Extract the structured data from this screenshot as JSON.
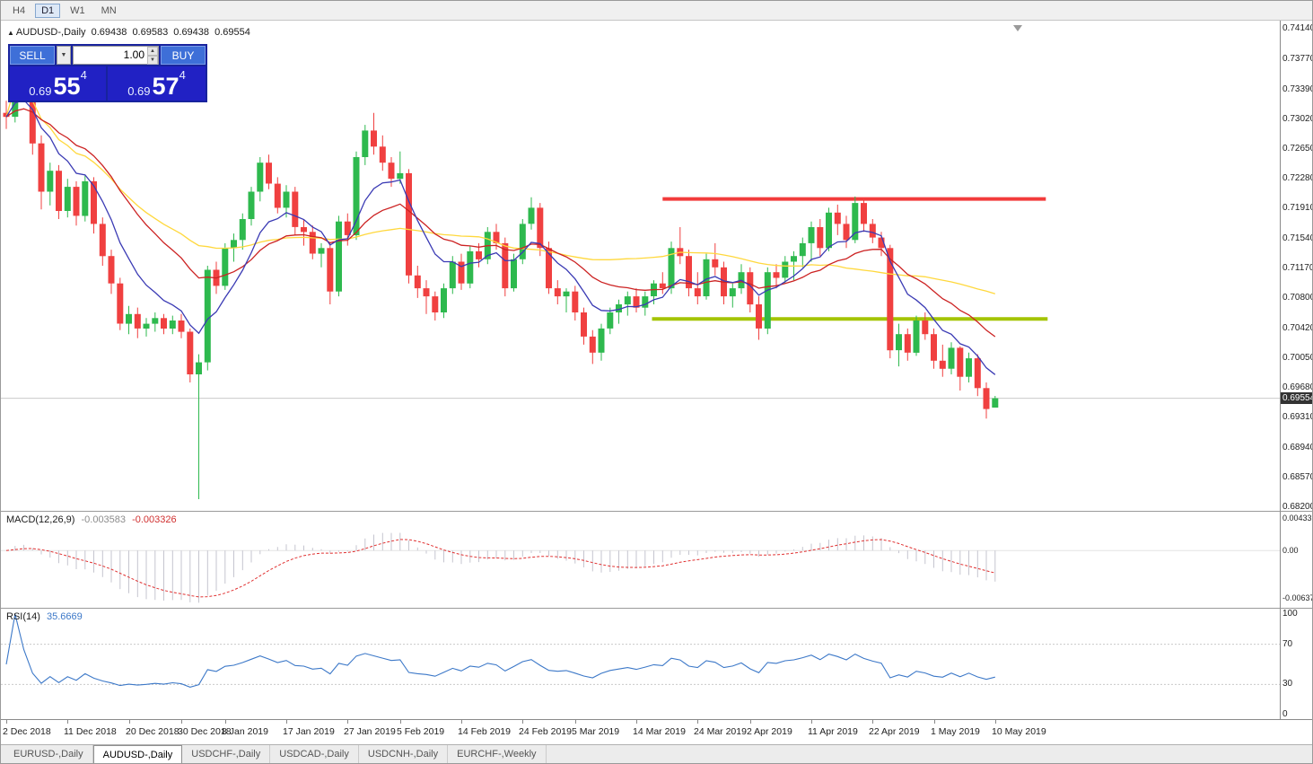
{
  "window": {
    "timeframes": [
      {
        "label": "H4",
        "active": false
      },
      {
        "label": "D1",
        "active": true
      },
      {
        "label": "W1",
        "active": false
      },
      {
        "label": "MN",
        "active": false
      }
    ],
    "tabs": [
      {
        "label": "EURUSD-,Daily",
        "active": false
      },
      {
        "label": "AUDUSD-,Daily",
        "active": true
      },
      {
        "label": "USDCHF-,Daily",
        "active": false
      },
      {
        "label": "USDCAD-,Daily",
        "active": false
      },
      {
        "label": "USDCNH-,Daily",
        "active": false
      },
      {
        "label": "EURCHF-,Weekly",
        "active": false
      }
    ]
  },
  "info_line": {
    "symbol": "AUDUSD-,Daily",
    "open": "0.69438",
    "high": "0.69583",
    "low": "0.69438",
    "close": "0.69554"
  },
  "trade_panel": {
    "sell_label": "SELL",
    "buy_label": "BUY",
    "volume": "1.00",
    "sell_price": {
      "prefix": "0.69",
      "big": "55",
      "sup": "4"
    },
    "buy_price": {
      "prefix": "0.69",
      "big": "57",
      "sup": "4"
    }
  },
  "chart_data": {
    "type": "candlestick",
    "title": "AUDUSD-,Daily",
    "current_price": 0.69554,
    "current_price_label": "0.69554",
    "colors": {
      "up": "#2eb94e",
      "down": "#f04040"
    },
    "price_axis_ticks": [
      "0.74140",
      "0.73770",
      "0.73390",
      "0.73020",
      "0.72650",
      "0.72280",
      "0.71910",
      "0.71540",
      "0.71170",
      "0.70800",
      "0.70420",
      "0.70050",
      "0.69680",
      "0.69310",
      "0.68940",
      "0.68570",
      "0.68200"
    ],
    "x_labels": [
      {
        "t": "2 Dec 2018",
        "i": 0
      },
      {
        "t": "11 Dec 2018",
        "i": 7
      },
      {
        "t": "20 Dec 2018",
        "i": 14
      },
      {
        "t": "30 Dec 2018",
        "i": 20
      },
      {
        "t": "8 Jan 2019",
        "i": 25
      },
      {
        "t": "17 Jan 2019",
        "i": 32
      },
      {
        "t": "27 Jan 2019",
        "i": 39
      },
      {
        "t": "5 Feb 2019",
        "i": 45
      },
      {
        "t": "14 Feb 2019",
        "i": 52
      },
      {
        "t": "24 Feb 2019",
        "i": 59
      },
      {
        "t": "5 Mar 2019",
        "i": 65
      },
      {
        "t": "14 Mar 2019",
        "i": 72
      },
      {
        "t": "24 Mar 2019",
        "i": 79
      },
      {
        "t": "2 Apr 2019",
        "i": 85
      },
      {
        "t": "11 Apr 2019",
        "i": 92
      },
      {
        "t": "22 Apr 2019",
        "i": 99
      },
      {
        "t": "1 May 2019",
        "i": 106
      },
      {
        "t": "10 May 2019",
        "i": 113
      }
    ],
    "candles": [
      [
        0.731,
        0.7325,
        0.729,
        0.7305
      ],
      [
        0.7305,
        0.7394,
        0.7298,
        0.7382
      ],
      [
        0.7382,
        0.739,
        0.733,
        0.734
      ],
      [
        0.734,
        0.7352,
        0.7258,
        0.7272
      ],
      [
        0.7272,
        0.7282,
        0.719,
        0.7212
      ],
      [
        0.7212,
        0.7248,
        0.7195,
        0.7238
      ],
      [
        0.7238,
        0.7245,
        0.7178,
        0.7188
      ],
      [
        0.7188,
        0.7228,
        0.718,
        0.7218
      ],
      [
        0.7218,
        0.7225,
        0.717,
        0.7182
      ],
      [
        0.7182,
        0.7232,
        0.7175,
        0.7225
      ],
      [
        0.7225,
        0.723,
        0.716,
        0.7172
      ],
      [
        0.7172,
        0.718,
        0.712,
        0.7132
      ],
      [
        0.7132,
        0.714,
        0.7085,
        0.7098
      ],
      [
        0.7098,
        0.7105,
        0.704,
        0.7048
      ],
      [
        0.7048,
        0.707,
        0.7035,
        0.706
      ],
      [
        0.706,
        0.7068,
        0.703,
        0.7042
      ],
      [
        0.7042,
        0.7055,
        0.7032,
        0.7048
      ],
      [
        0.7048,
        0.7062,
        0.7038,
        0.7055
      ],
      [
        0.7055,
        0.706,
        0.7035,
        0.7042
      ],
      [
        0.7042,
        0.7058,
        0.7035,
        0.7052
      ],
      [
        0.7052,
        0.706,
        0.703,
        0.7038
      ],
      [
        0.7038,
        0.7042,
        0.6975,
        0.6985
      ],
      [
        0.6985,
        0.701,
        0.683,
        0.7
      ],
      [
        0.7,
        0.712,
        0.699,
        0.7115
      ],
      [
        0.7115,
        0.7125,
        0.7085,
        0.7095
      ],
      [
        0.7095,
        0.7148,
        0.709,
        0.7142
      ],
      [
        0.7142,
        0.716,
        0.7125,
        0.7152
      ],
      [
        0.7152,
        0.7185,
        0.714,
        0.7178
      ],
      [
        0.7178,
        0.7218,
        0.717,
        0.7212
      ],
      [
        0.7212,
        0.7255,
        0.72,
        0.7248
      ],
      [
        0.7248,
        0.7258,
        0.7215,
        0.7222
      ],
      [
        0.7222,
        0.723,
        0.7185,
        0.7192
      ],
      [
        0.7192,
        0.722,
        0.718,
        0.7212
      ],
      [
        0.7212,
        0.7218,
        0.7158,
        0.7168
      ],
      [
        0.7168,
        0.7178,
        0.7145,
        0.7162
      ],
      [
        0.7162,
        0.717,
        0.7128,
        0.7135
      ],
      [
        0.7135,
        0.7148,
        0.7118,
        0.7142
      ],
      [
        0.7142,
        0.7148,
        0.7072,
        0.7088
      ],
      [
        0.7088,
        0.7182,
        0.7082,
        0.7175
      ],
      [
        0.7175,
        0.7185,
        0.7145,
        0.7158
      ],
      [
        0.7158,
        0.7262,
        0.7152,
        0.7255
      ],
      [
        0.7255,
        0.7295,
        0.7245,
        0.7288
      ],
      [
        0.7288,
        0.731,
        0.7258,
        0.7268
      ],
      [
        0.7268,
        0.7282,
        0.7238,
        0.7248
      ],
      [
        0.7248,
        0.7255,
        0.7218,
        0.7228
      ],
      [
        0.7228,
        0.7262,
        0.7222,
        0.7235
      ],
      [
        0.7235,
        0.724,
        0.7098,
        0.7108
      ],
      [
        0.7108,
        0.712,
        0.708,
        0.7092
      ],
      [
        0.7092,
        0.7102,
        0.706,
        0.7082
      ],
      [
        0.7082,
        0.7088,
        0.7052,
        0.7062
      ],
      [
        0.7062,
        0.7098,
        0.7055,
        0.7092
      ],
      [
        0.7092,
        0.7132,
        0.7085,
        0.7125
      ],
      [
        0.7125,
        0.7135,
        0.709,
        0.7098
      ],
      [
        0.7098,
        0.7145,
        0.7092,
        0.7138
      ],
      [
        0.7138,
        0.7148,
        0.7118,
        0.7128
      ],
      [
        0.7128,
        0.7168,
        0.7122,
        0.7162
      ],
      [
        0.7162,
        0.7172,
        0.714,
        0.7148
      ],
      [
        0.7148,
        0.7155,
        0.7082,
        0.7092
      ],
      [
        0.7092,
        0.7135,
        0.7088,
        0.7128
      ],
      [
        0.7128,
        0.7178,
        0.7122,
        0.7172
      ],
      [
        0.7172,
        0.7205,
        0.7165,
        0.7192
      ],
      [
        0.7192,
        0.7198,
        0.7132,
        0.7142
      ],
      [
        0.7142,
        0.715,
        0.7085,
        0.7092
      ],
      [
        0.7092,
        0.7102,
        0.7072,
        0.7082
      ],
      [
        0.7082,
        0.7092,
        0.7062,
        0.7088
      ],
      [
        0.7088,
        0.7095,
        0.7052,
        0.7062
      ],
      [
        0.7062,
        0.7068,
        0.7022,
        0.7032
      ],
      [
        0.7032,
        0.704,
        0.6998,
        0.7012
      ],
      [
        0.7012,
        0.7048,
        0.7002,
        0.7042
      ],
      [
        0.7042,
        0.7068,
        0.7035,
        0.7062
      ],
      [
        0.7062,
        0.7078,
        0.7048,
        0.7072
      ],
      [
        0.7072,
        0.7088,
        0.7058,
        0.7082
      ],
      [
        0.7082,
        0.7092,
        0.7062,
        0.7068
      ],
      [
        0.7068,
        0.7088,
        0.7058,
        0.7082
      ],
      [
        0.7082,
        0.7102,
        0.7072,
        0.7098
      ],
      [
        0.7098,
        0.7112,
        0.7085,
        0.7092
      ],
      [
        0.7092,
        0.715,
        0.7085,
        0.7142
      ],
      [
        0.7142,
        0.7168,
        0.7122,
        0.7132
      ],
      [
        0.7132,
        0.714,
        0.7082,
        0.7092
      ],
      [
        0.7092,
        0.7112,
        0.7072,
        0.7082
      ],
      [
        0.7082,
        0.7135,
        0.7078,
        0.7128
      ],
      [
        0.7128,
        0.7148,
        0.7108,
        0.7118
      ],
      [
        0.7118,
        0.7125,
        0.7072,
        0.7082
      ],
      [
        0.7082,
        0.7098,
        0.7068,
        0.7092
      ],
      [
        0.7092,
        0.7122,
        0.7085,
        0.7112
      ],
      [
        0.7112,
        0.7118,
        0.7062,
        0.7072
      ],
      [
        0.7072,
        0.7082,
        0.7028,
        0.7042
      ],
      [
        0.7042,
        0.7118,
        0.7035,
        0.7112
      ],
      [
        0.7112,
        0.7122,
        0.7092,
        0.7105
      ],
      [
        0.7105,
        0.7132,
        0.7098,
        0.7125
      ],
      [
        0.7125,
        0.7138,
        0.7102,
        0.7132
      ],
      [
        0.7132,
        0.7155,
        0.7118,
        0.7148
      ],
      [
        0.7148,
        0.7175,
        0.7125,
        0.7168
      ],
      [
        0.7168,
        0.7178,
        0.7132,
        0.7142
      ],
      [
        0.7142,
        0.7192,
        0.7138,
        0.7186
      ],
      [
        0.7186,
        0.7196,
        0.7158,
        0.7172
      ],
      [
        0.7172,
        0.7182,
        0.7142,
        0.7152
      ],
      [
        0.7152,
        0.7206,
        0.7148,
        0.7198
      ],
      [
        0.7198,
        0.7204,
        0.7162,
        0.7172
      ],
      [
        0.7172,
        0.7178,
        0.7148,
        0.7155
      ],
      [
        0.7155,
        0.7162,
        0.7132,
        0.7142
      ],
      [
        0.7142,
        0.7146,
        0.7005,
        0.7015
      ],
      [
        0.7015,
        0.7048,
        0.6995,
        0.7035
      ],
      [
        0.7035,
        0.7042,
        0.7002,
        0.7012
      ],
      [
        0.7012,
        0.7058,
        0.7008,
        0.7052
      ],
      [
        0.7052,
        0.7062,
        0.7028,
        0.7035
      ],
      [
        0.7035,
        0.7042,
        0.6992,
        0.7002
      ],
      [
        0.7002,
        0.7022,
        0.6982,
        0.6992
      ],
      [
        0.6992,
        0.7025,
        0.6985,
        0.7018
      ],
      [
        0.7018,
        0.702,
        0.6965,
        0.6982
      ],
      [
        0.6982,
        0.7012,
        0.6975,
        0.7005
      ],
      [
        0.7005,
        0.701,
        0.6958,
        0.6968
      ],
      [
        0.6968,
        0.6975,
        0.693,
        0.6942
      ],
      [
        0.69438,
        0.69583,
        0.69438,
        0.69554
      ]
    ],
    "overlays": [
      {
        "name": "sma-slow",
        "type": "sma",
        "period": 55,
        "color": "#ffd83d"
      },
      {
        "name": "ema-mid",
        "type": "ema",
        "period": 20,
        "color": "#cc2222"
      },
      {
        "name": "ema-fast",
        "type": "ema",
        "period": 8,
        "color": "#3a3ab4"
      }
    ],
    "hlines": [
      {
        "name": "resistance-line",
        "price": 0.7203,
        "i1": 75,
        "i2": 118.8,
        "color": "#f23b3b",
        "width": 4
      },
      {
        "name": "support-line",
        "price": 0.7054,
        "i1": 73.8,
        "i2": 119,
        "color": "#a4c400",
        "width": 4
      }
    ],
    "macd": {
      "label": "MACD(12,26,9)",
      "value_main": "-0.003583",
      "value_signal": "-0.003326",
      "fast": 12,
      "slow": 26,
      "signal": 9,
      "ticks": [
        "0.004331",
        "0.00",
        "-0.006373"
      ],
      "vmax": 0.0052,
      "vmin": -0.0078,
      "hist_color": "#c5c5cf",
      "signal_color": "#e03030"
    },
    "rsi": {
      "label": "RSI(14)",
      "value": "35.6669",
      "period": 14,
      "levels": [
        70,
        30
      ],
      "ticks": [
        "100",
        "70",
        "30",
        "0"
      ],
      "color": "#3c78c8"
    }
  }
}
